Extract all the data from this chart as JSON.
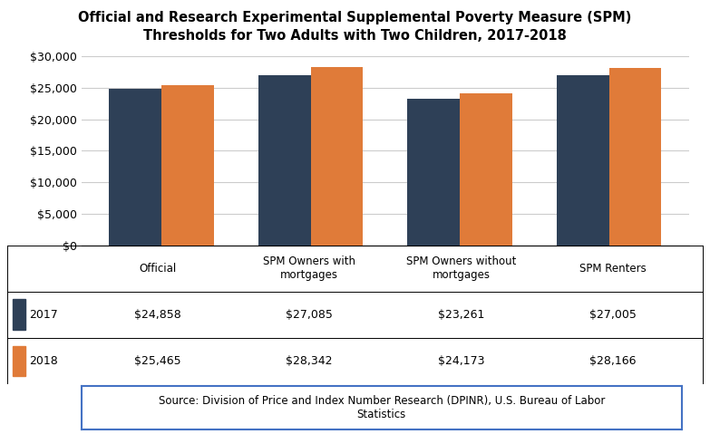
{
  "title_line1": "Official and Research Experimental Supplemental Poverty Measure (SPM)",
  "title_line2": "Thresholds for Two Adults with Two Children, 2017-2018",
  "categories": [
    "Official",
    "SPM Owners with\nmortgages",
    "SPM Owners without\nmortgages",
    "SPM Renters"
  ],
  "values_2017": [
    24858,
    27085,
    23261,
    27005
  ],
  "values_2018": [
    25465,
    28342,
    24173,
    28166
  ],
  "labels_2017": [
    "$24,858",
    "$27,085",
    "$23,261",
    "$27,005"
  ],
  "labels_2018": [
    "$25,465",
    "$28,342",
    "$24,173",
    "$28,166"
  ],
  "color_2017": "#2E4057",
  "color_2018": "#E07B39",
  "ylim": [
    0,
    30000
  ],
  "yticks": [
    0,
    5000,
    10000,
    15000,
    20000,
    25000,
    30000
  ],
  "ytick_labels": [
    "$0",
    "$5,000",
    "$10,000",
    "$15,000",
    "$20,000",
    "$25,000",
    "$30,000"
  ],
  "legend_label_2017": "2017",
  "legend_label_2018": "2018",
  "source_text": "Source: Division of Price and Index Number Research (DPINR), U.S. Bureau of Labor\nStatistics",
  "bar_width": 0.35,
  "background_color": "#FFFFFF",
  "grid_color": "#CCCCCC",
  "source_border_color": "#4472C4",
  "table_line_color": "#999999",
  "figsize": [
    7.83,
    4.79
  ],
  "dpi": 100
}
